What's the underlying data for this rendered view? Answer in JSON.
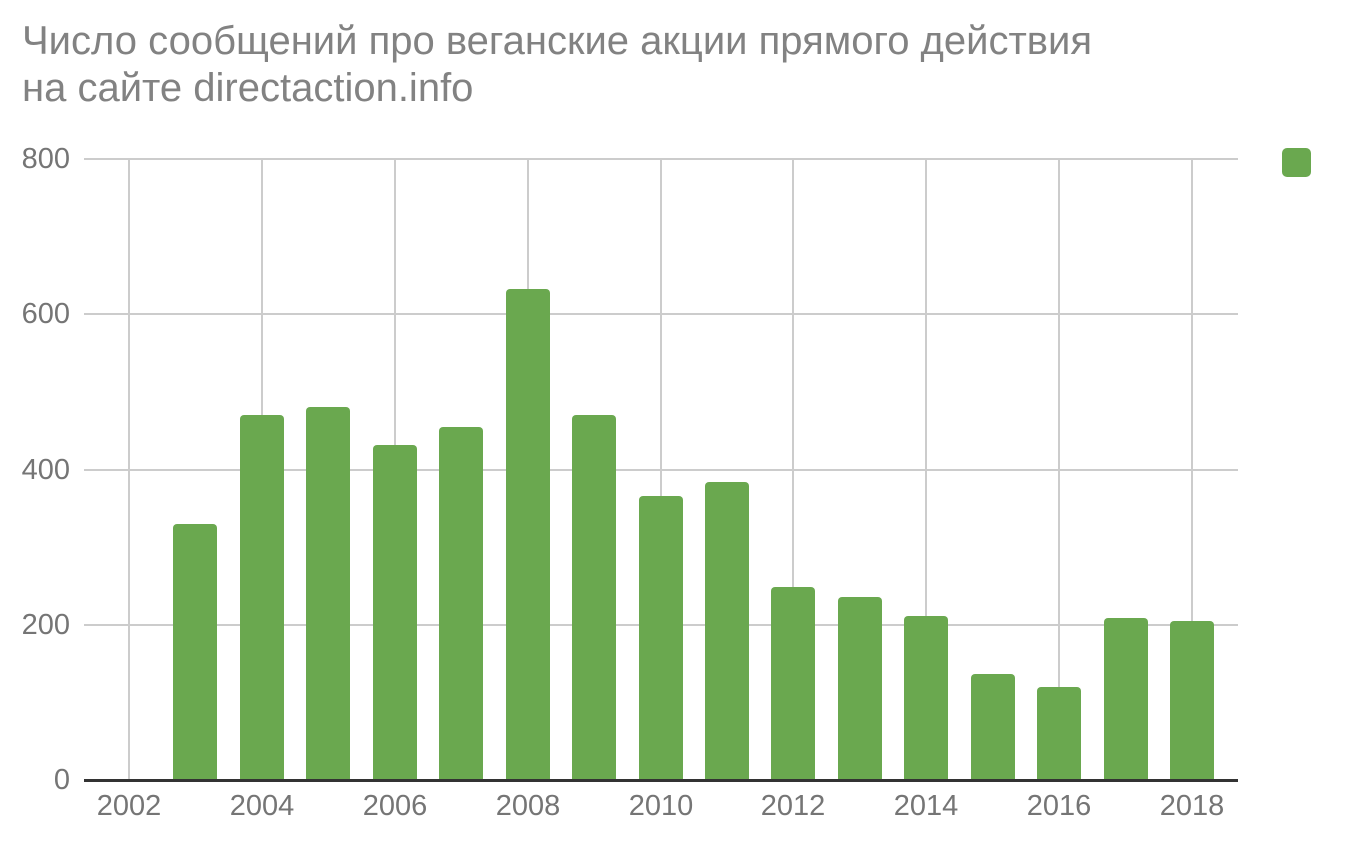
{
  "title_line1": "Число сообщений про веганские акции прямого действия",
  "title_line2": "на сайте directaction.info",
  "legend": {
    "series_label": "",
    "swatch_color": "#6aa84f",
    "position": "top-right"
  },
  "colors": {
    "bar": "#6aa84f",
    "gridline": "#cccccc",
    "axis_line": "#333333",
    "tick_labels": "#757575",
    "title": "#828282",
    "background": "#ffffff"
  },
  "chart_data": {
    "type": "bar",
    "title": "Число сообщений про веганские акции прямого действия на сайте directaction.info",
    "categories": [
      2003,
      2004,
      2005,
      2006,
      2007,
      2008,
      2009,
      2010,
      2011,
      2012,
      2013,
      2014,
      2015,
      2016,
      2017,
      2018
    ],
    "values": [
      330,
      470,
      480,
      431,
      455,
      633,
      470,
      366,
      384,
      248,
      236,
      211,
      136,
      120,
      209,
      205
    ],
    "xlabel": "",
    "ylabel": "",
    "ylim": [
      0,
      800
    ],
    "yticks": [
      0,
      200,
      400,
      600,
      800
    ],
    "xticks": [
      2002,
      2004,
      2006,
      2008,
      2010,
      2012,
      2014,
      2016,
      2018
    ],
    "grid": true,
    "legend_position": "top-right"
  }
}
